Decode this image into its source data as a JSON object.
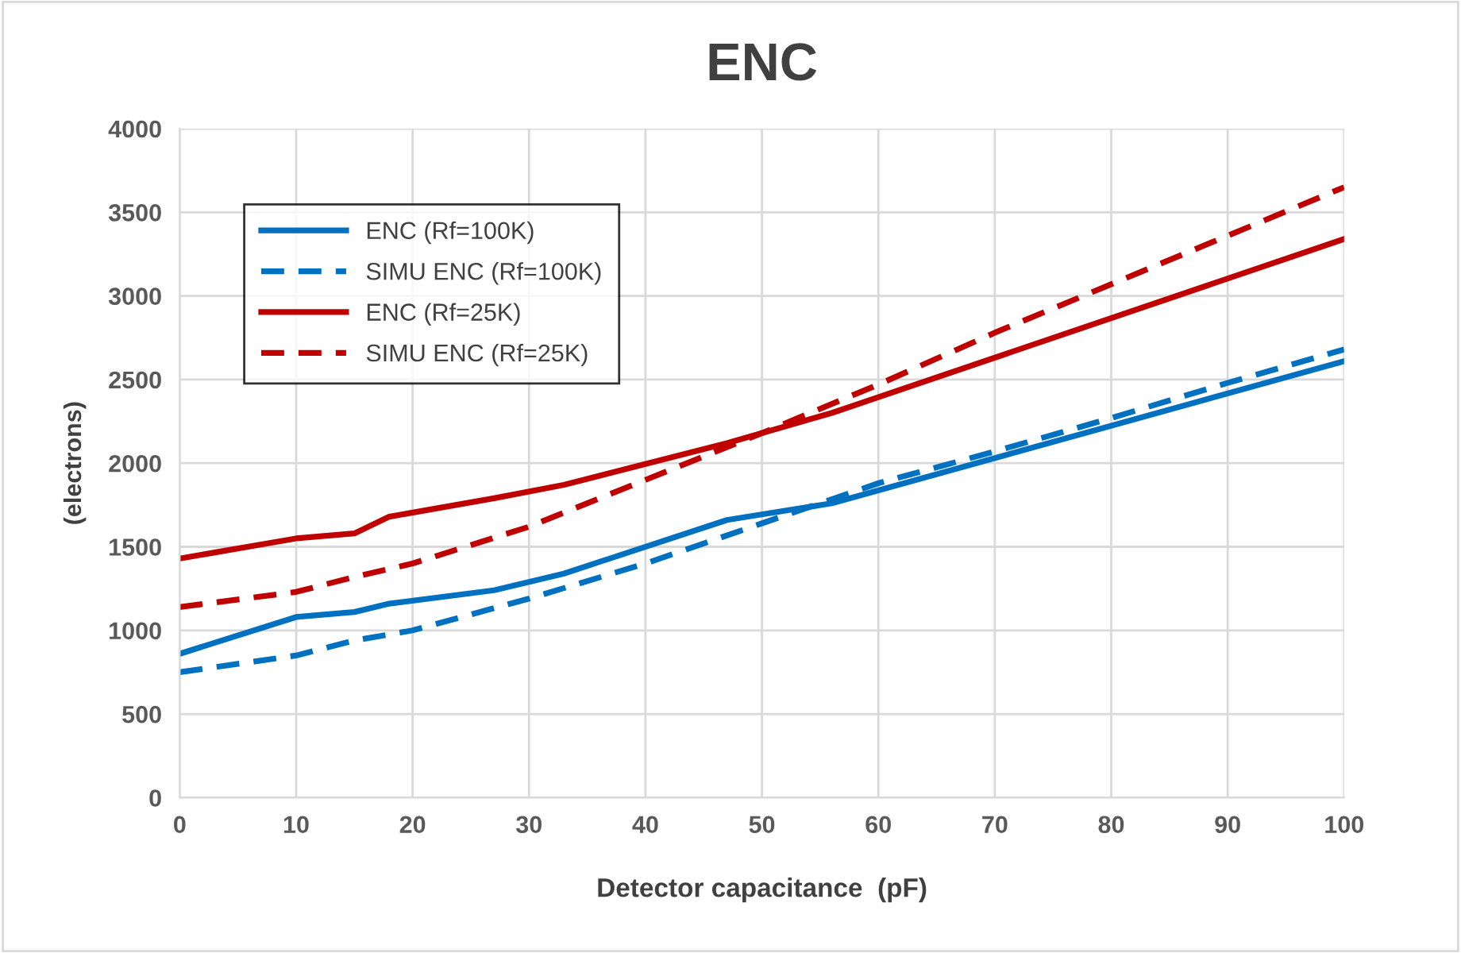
{
  "chart_data": {
    "type": "line",
    "title": "ENC",
    "xlabel": "Detector capacitance  (pF)",
    "ylabel": "(electrons)",
    "xlim": [
      0,
      100
    ],
    "xticks": [
      0,
      10,
      20,
      30,
      40,
      50,
      60,
      70,
      80,
      90,
      100
    ],
    "ylim": [
      0,
      4000
    ],
    "yticks": [
      0,
      500,
      1000,
      1500,
      2000,
      2500,
      3000,
      3500,
      4000
    ],
    "grid": true,
    "legend": "top left",
    "marker": "none",
    "series": [
      {
        "name": "ENC (Rf=100K)",
        "color": "#0070c0",
        "line_style": "solid",
        "x": [
          0,
          10,
          15,
          18,
          27,
          33,
          47,
          56,
          100
        ],
        "values": [
          860,
          1080,
          1110,
          1160,
          1240,
          1340,
          1660,
          1760,
          2610
        ]
      },
      {
        "name": "SIMU ENC (Rf=100K)",
        "color": "#0070c0",
        "line_style": "dashed",
        "x": [
          0,
          10,
          15,
          20,
          30,
          40,
          50,
          60,
          70,
          80,
          90,
          100
        ],
        "values": [
          750,
          850,
          940,
          1000,
          1190,
          1400,
          1640,
          1880,
          2070,
          2270,
          2480,
          2680
        ]
      },
      {
        "name": "ENC (Rf=25K)",
        "color": "#c00000",
        "line_style": "solid",
        "x": [
          0,
          10,
          15,
          18,
          27,
          33,
          47,
          56,
          100
        ],
        "values": [
          1430,
          1550,
          1580,
          1680,
          1790,
          1870,
          2120,
          2300,
          3340
        ]
      },
      {
        "name": "SIMU ENC (Rf=25K)",
        "color": "#c00000",
        "line_style": "dashed",
        "x": [
          0,
          10,
          15,
          20,
          30,
          40,
          50,
          60,
          70,
          80,
          90,
          100
        ],
        "values": [
          1140,
          1230,
          1320,
          1400,
          1620,
          1900,
          2180,
          2470,
          2780,
          3070,
          3360,
          3650
        ]
      }
    ]
  }
}
